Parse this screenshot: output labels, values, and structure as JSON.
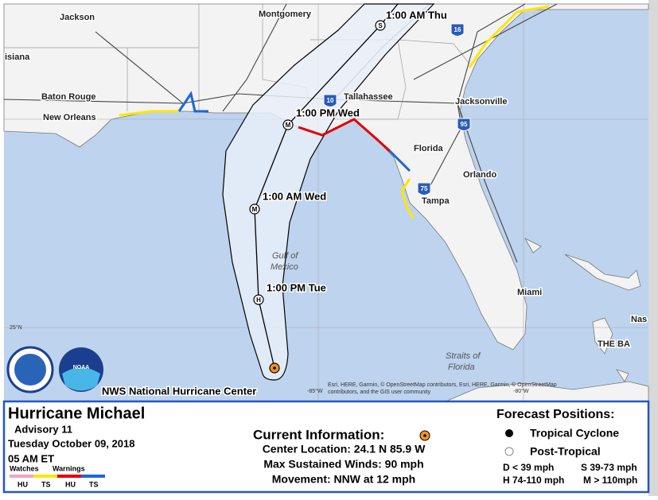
{
  "map": {
    "labels": [
      "Jackson",
      "Montgomery",
      "isiana",
      "Baton Rouge",
      "New Orleans",
      "Tallahassee",
      "Jacksonville",
      "Florida",
      "Orlando",
      "Tampa",
      "Miami",
      "Nas",
      "THE BA"
    ],
    "water_labels": [
      "Gulf of",
      "Mexico",
      "Straits of",
      "Florida"
    ],
    "track_labels": [
      "1:00 AM Thu",
      "1:00 PM Wed",
      "1:00 AM Wed",
      "1:00 PM Tue"
    ],
    "markers": [
      "S",
      "M",
      "M",
      "H"
    ],
    "shields": [
      "10",
      "16",
      "95",
      "75"
    ],
    "grid_labels": [
      "25°N",
      "-85°W",
      "-80°W"
    ],
    "attribution": [
      "Esri, HERE, Garmin, © OpenStreetMap contributors, Esri, HERE, Garmin, © OpenStreetMap",
      "contributors, and the GIS user community"
    ],
    "credit": "NWS National Hurricane Center",
    "logos": [
      "NOAA"
    ]
  },
  "panel": {
    "title": "Hurricane Michael",
    "advisory": "Advisory 11",
    "date": "Tuesday October 09, 2018",
    "time": "05 AM ET",
    "legend": {
      "watches": "Watches",
      "warnings": "Warnings",
      "codes": [
        "HU",
        "TS",
        "HU",
        "TS"
      ]
    },
    "current": {
      "heading": "Current Information:",
      "location": "Center Location: 24.1 N  85.9 W",
      "winds": "Max Sustained Winds: 90 mph",
      "movement": "Movement: NNW at 12 mph"
    },
    "forecast": {
      "heading": "Forecast Positions:",
      "types": [
        "Tropical Cyclone",
        "Post-Tropical"
      ],
      "scale": [
        "D < 39 mph",
        "S 39-73 mph",
        "H 74-110 mph",
        "M > 110mph"
      ]
    }
  }
}
